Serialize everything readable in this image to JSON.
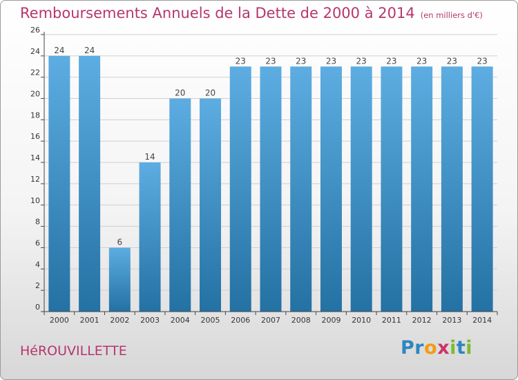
{
  "title": "Remboursements Annuels de la Dette de 2000 à 2014",
  "unit_note": "(en milliers d'€)",
  "town": "HéROUVILLETTE",
  "logo": {
    "letters": [
      "P",
      "r",
      "o",
      "x",
      "i",
      "t",
      "i"
    ],
    "colors": [
      "#2e86c1",
      "#2e86c1",
      "#f39c12",
      "#cc3366",
      "#7dbb2e",
      "#2e86c1",
      "#7dbb2e"
    ]
  },
  "colors": {
    "bar_top": "#5dade2",
    "bar_bottom": "#2471a3",
    "axis": "#444444",
    "grid": "#cfcfcf",
    "title": "#b5366d"
  },
  "chart_data": {
    "type": "bar",
    "title": "Remboursements Annuels de la Dette de 2000 à 2014",
    "xlabel": "",
    "ylabel": "",
    "categories": [
      "2000",
      "2001",
      "2002",
      "2003",
      "2004",
      "2005",
      "2006",
      "2007",
      "2008",
      "2009",
      "2010",
      "2011",
      "2012",
      "2013",
      "2014"
    ],
    "values": [
      24,
      24,
      6,
      14,
      20,
      20,
      23,
      23,
      23,
      23,
      23,
      23,
      23,
      23,
      23
    ],
    "ylim": [
      0,
      26
    ],
    "yticks": [
      0,
      2,
      4,
      6,
      8,
      10,
      12,
      14,
      16,
      18,
      20,
      22,
      24,
      26
    ],
    "grid": true
  }
}
